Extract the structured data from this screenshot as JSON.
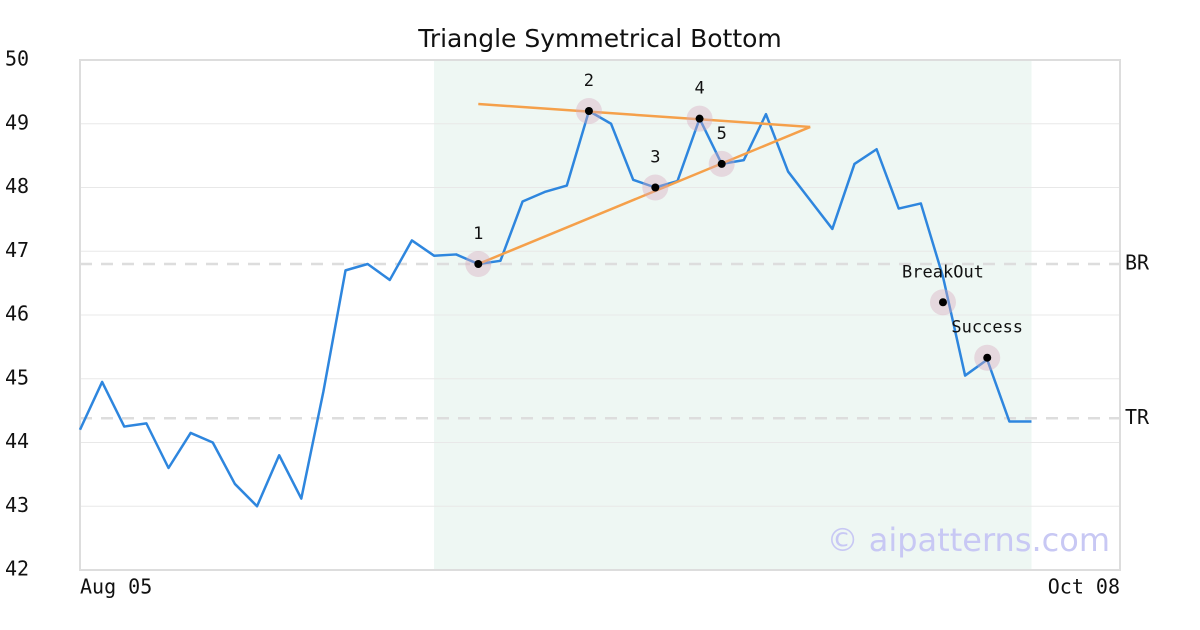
{
  "chart_data": {
    "type": "line",
    "title": "Triangle Symmetrical Bottom",
    "watermark": "© aipatterns.com",
    "x": [
      0,
      1,
      2,
      3,
      4,
      5,
      6,
      7,
      8,
      9,
      10,
      11,
      12,
      13,
      14,
      15,
      16,
      17,
      18,
      19,
      20,
      21,
      22,
      23,
      24,
      25,
      26,
      27,
      28,
      29,
      30,
      31,
      32,
      33,
      34,
      35,
      36,
      37,
      38,
      39,
      40,
      41,
      42,
      43
    ],
    "series": [
      {
        "color": "#2e86de",
        "values": [
          44.2,
          44.95,
          44.25,
          44.3,
          43.6,
          44.15,
          44.0,
          43.35,
          43.0,
          43.8,
          43.12,
          44.8,
          46.7,
          46.8,
          46.55,
          47.17,
          46.93,
          46.95,
          46.8,
          46.85,
          47.78,
          47.93,
          48.03,
          49.2,
          49.0,
          48.12,
          48.0,
          48.1,
          49.08,
          48.37,
          48.43,
          49.15,
          48.25,
          47.8,
          47.35,
          48.37,
          48.6,
          47.67,
          47.75,
          46.6,
          45.05,
          45.3,
          44.33,
          44.33
        ]
      }
    ],
    "xlim": [
      0,
      47
    ],
    "xticks": [
      {
        "value": 0,
        "label": "Aug 05"
      },
      {
        "value": 47,
        "label": "Oct 08"
      }
    ],
    "ylim": [
      42,
      50
    ],
    "yticks": [
      42,
      43,
      44,
      45,
      46,
      47,
      48,
      49,
      50
    ],
    "grid": true,
    "region": {
      "x": [
        16,
        43
      ],
      "color": "#eef7f3"
    },
    "levels": [
      {
        "label": "BR",
        "value": 46.8
      },
      {
        "label": "TR",
        "value": 44.38
      }
    ],
    "trendlines": {
      "color": "#f5a04a",
      "lines": [
        {
          "x": [
            18,
            33
          ],
          "y": [
            49.31,
            48.95
          ]
        },
        {
          "x": [
            18,
            33
          ],
          "y": [
            46.8,
            48.95
          ]
        }
      ]
    },
    "points": [
      {
        "label": "1",
        "x": 18,
        "y": 46.8
      },
      {
        "label": "2",
        "x": 23,
        "y": 49.2
      },
      {
        "label": "3",
        "x": 26,
        "y": 48.0
      },
      {
        "label": "4",
        "x": 28,
        "y": 49.08
      },
      {
        "label": "5",
        "x": 29,
        "y": 48.37
      },
      {
        "label": "BreakOut",
        "x": 39,
        "y": 46.2
      },
      {
        "label": "Success",
        "x": 41,
        "y": 45.33
      }
    ]
  }
}
